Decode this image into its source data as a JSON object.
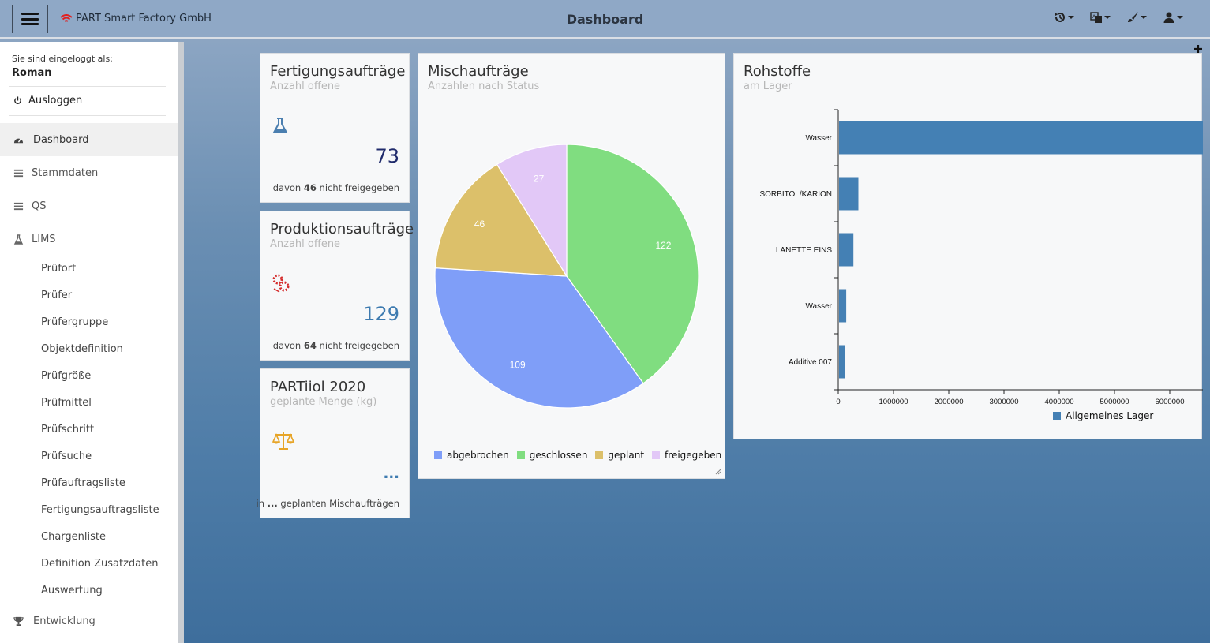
{
  "header": {
    "brand": "PART Smart Factory GmbH",
    "title": "Dashboard",
    "icons": [
      "history-icon",
      "language-icon",
      "theme-brush-icon",
      "user-icon"
    ]
  },
  "sidebar": {
    "login_label": "Sie sind eingeloggt als:",
    "user": "Roman",
    "logout": "Ausloggen",
    "items": [
      {
        "label": "Dashboard",
        "icon": "dashboard-icon"
      },
      {
        "label": "Stammdaten",
        "icon": "list-icon"
      },
      {
        "label": "QS",
        "icon": "list-icon"
      },
      {
        "label": "LIMS",
        "icon": "flask-icon"
      }
    ],
    "lims_items": [
      "Prüfort",
      "Prüfer",
      "Prüfergruppe",
      "Objektdefinition",
      "Prüfgröße",
      "Prüfmittel",
      "Prüfschritt",
      "Prüfsuche",
      "Prüfauftragsliste",
      "Fertigungsauftragsliste",
      "Chargenliste",
      "Definition Zusatzdaten",
      "Auswertung"
    ],
    "bottom_item": {
      "label": "Entwicklung",
      "icon": "trophy-icon"
    }
  },
  "cards": {
    "fertigung": {
      "title": "Fertigungsaufträge",
      "subtitle": "Anzahl offene",
      "value": "73",
      "note_pre": "davon",
      "note_num": "46",
      "note_post": "nicht freigegeben",
      "icon": "flask-icon",
      "value_color": "#1f2a6b"
    },
    "produktion": {
      "title": "Produktionsaufträge",
      "subtitle": "Anzahl offene",
      "value": "129",
      "note_pre": "davon",
      "note_num": "64",
      "note_post": "nicht freigegeben",
      "icon": "gears-icon",
      "value_color": "#3e7bb0"
    },
    "partiiol": {
      "title": "PARTiiol 2020",
      "subtitle": "geplante Menge (kg)",
      "value": "...",
      "note_pre": "in",
      "note_num": "...",
      "note_post": "geplanten Mischaufträgen",
      "icon": "scale-icon"
    }
  },
  "chart_data": [
    {
      "type": "pie",
      "title": "Mischaufträge",
      "subtitle": "Anzahlen nach Status",
      "categories": [
        "abgebrochen",
        "geschlossen",
        "geplant",
        "freigegeben"
      ],
      "values": [
        109,
        122,
        46,
        27
      ],
      "colors": [
        "#7f9ef8",
        "#80dd80",
        "#dcc06a",
        "#e2c8f7"
      ],
      "legend": "bottom"
    },
    {
      "type": "bar",
      "orientation": "horizontal",
      "title": "Rohstoffe",
      "subtitle": "am Lager",
      "categories": [
        "Wasser",
        "SORBITOL/KARION",
        "LANETTE EINS",
        "Wasser",
        "Additive 007"
      ],
      "series": [
        {
          "name": "Allgemeines Lager",
          "values": [
            6600000,
            350000,
            260000,
            130000,
            110000
          ]
        }
      ],
      "xticks": [
        "0",
        "1000000",
        "2000000",
        "3000000",
        "4000000",
        "5000000",
        "6000000"
      ],
      "xlim": [
        0,
        6600000
      ],
      "color": "#4480b4",
      "legend": "bottom-right"
    }
  ]
}
